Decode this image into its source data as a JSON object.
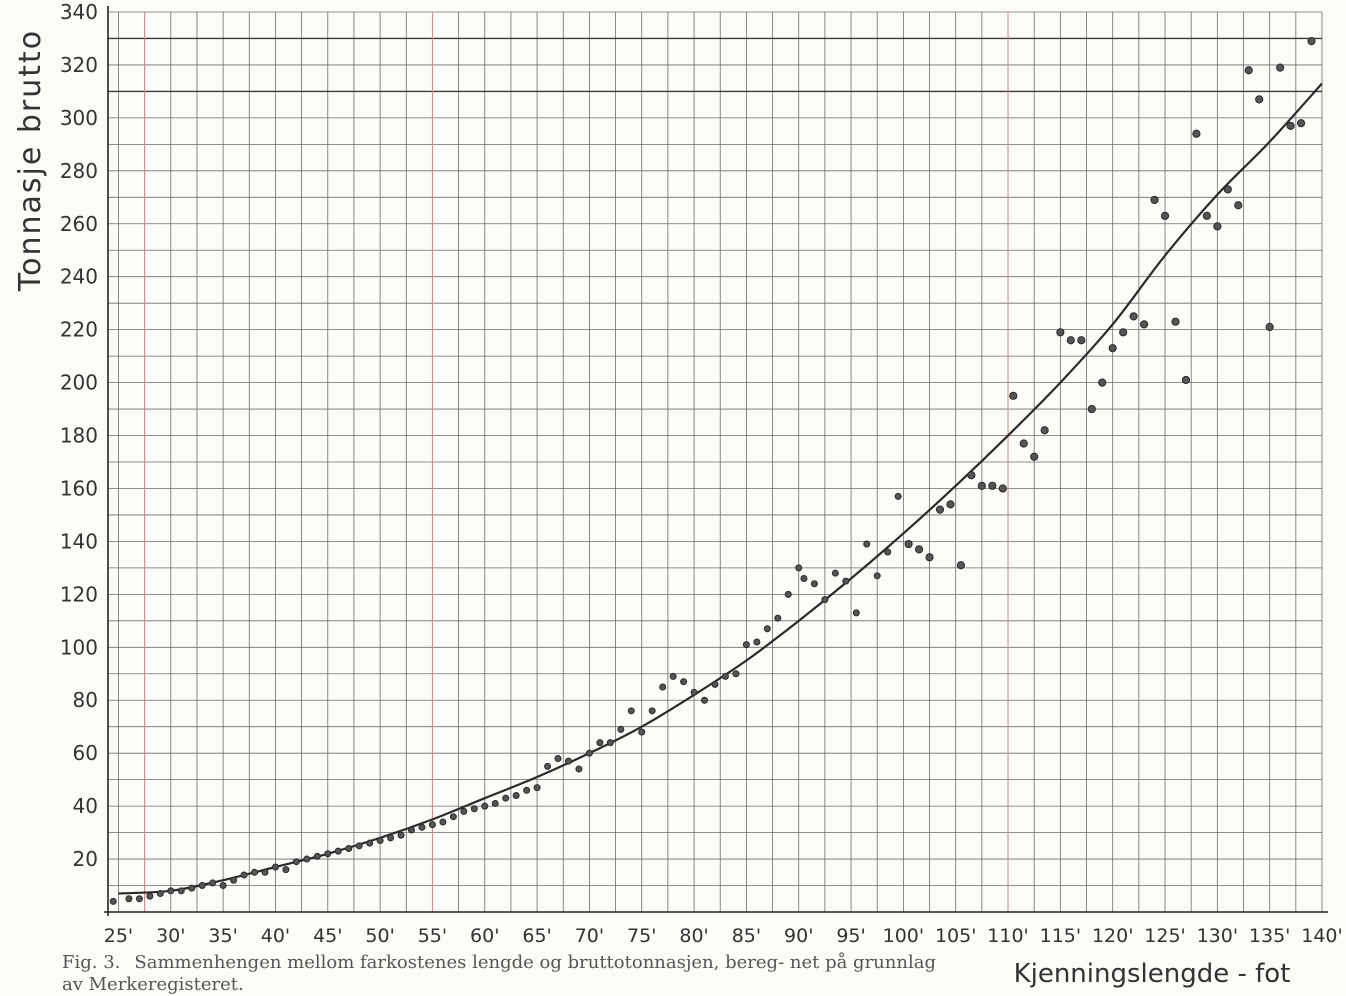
{
  "chart_data": {
    "type": "scatter",
    "ylabel": "Tonnasje brutto",
    "xlabel": "Kjenningslengde - fot",
    "xlim": [
      24,
      140
    ],
    "ylim": [
      0,
      340
    ],
    "x_ticks": [
      25,
      30,
      35,
      40,
      45,
      50,
      55,
      60,
      65,
      70,
      75,
      80,
      85,
      90,
      95,
      100,
      105,
      110,
      115,
      120,
      125,
      130,
      135,
      140
    ],
    "x_tick_labels": [
      "25'",
      "30'",
      "35'",
      "40'",
      "45'",
      "50'",
      "55'",
      "60'",
      "65'",
      "70'",
      "75'",
      "80'",
      "85'",
      "90'",
      "95'",
      "100'",
      "105'",
      "110'",
      "115'",
      "120'",
      "125'",
      "130'",
      "135'",
      "140'"
    ],
    "y_ticks": [
      20,
      40,
      60,
      80,
      100,
      120,
      140,
      160,
      180,
      200,
      220,
      240,
      260,
      280,
      300,
      320,
      340
    ],
    "grid": true,
    "caption_label": "Fig. 3.",
    "caption": "Sammenhengen mellom farkostenes lengde og bruttotonnasjen, bereg- net på grunnlag av Merkeregisteret.",
    "trend_curve": {
      "x": [
        25,
        30,
        35,
        40,
        45,
        50,
        55,
        60,
        65,
        70,
        75,
        80,
        85,
        90,
        95,
        100,
        105,
        110,
        115,
        120,
        125,
        130,
        135,
        140
      ],
      "y": [
        7,
        8,
        12,
        17,
        22,
        28,
        35,
        43,
        51,
        60,
        70,
        82,
        95,
        110,
        126,
        143,
        161,
        180,
        200,
        222,
        248,
        271,
        291,
        313
      ]
    },
    "series": [
      {
        "x": [
          24.5,
          26,
          27,
          28,
          29,
          30,
          31,
          32,
          33,
          34,
          35,
          36,
          37,
          38,
          39,
          40,
          41,
          42,
          43,
          44,
          45,
          46,
          47,
          48,
          49,
          50,
          51,
          52,
          53,
          54,
          55,
          56,
          57,
          58,
          59,
          60,
          61,
          62,
          63,
          64,
          65,
          66,
          67,
          68,
          69,
          70,
          71,
          72,
          73,
          74,
          75,
          76,
          77,
          78,
          79,
          80,
          81,
          82,
          83,
          84,
          85,
          86,
          87,
          88,
          89,
          90,
          90.5,
          91.5,
          92.5,
          93.5,
          94.5,
          95.5,
          96.5,
          97.5,
          98.5,
          99.5,
          100.5,
          101.5,
          102.5,
          103.5,
          104.5,
          105.5,
          106.5,
          107.5,
          108.5,
          109.5,
          110.5,
          111.5,
          112.5,
          113.5,
          115,
          116,
          117,
          118,
          119,
          120,
          121,
          122,
          123,
          124,
          125,
          126,
          127,
          128,
          129,
          130,
          131,
          132,
          133,
          134,
          135,
          136,
          137,
          138,
          139
        ],
        "y": [
          4,
          5,
          5,
          6,
          7,
          8,
          8,
          9,
          10,
          11,
          10,
          12,
          14,
          15,
          15,
          17,
          16,
          19,
          20,
          21,
          22,
          23,
          24,
          25,
          26,
          27,
          28,
          29,
          31,
          32,
          33,
          34,
          36,
          38,
          39,
          40,
          41,
          43,
          44,
          46,
          47,
          55,
          58,
          57,
          54,
          60,
          64,
          64,
          69,
          76,
          68,
          76,
          85,
          89,
          87,
          83,
          80,
          86,
          89,
          90,
          101,
          102,
          107,
          111,
          120,
          130,
          126,
          124,
          118,
          128,
          125,
          113,
          139,
          127,
          136,
          157,
          139,
          137,
          134,
          152,
          154,
          131,
          165,
          161,
          161,
          160,
          195,
          177,
          172,
          182,
          219,
          216,
          216,
          190,
          200,
          213,
          219,
          225,
          222,
          269,
          263,
          223,
          201,
          294,
          263,
          259,
          273,
          267,
          318,
          307,
          221,
          319,
          297,
          298,
          329
        ]
      }
    ]
  }
}
